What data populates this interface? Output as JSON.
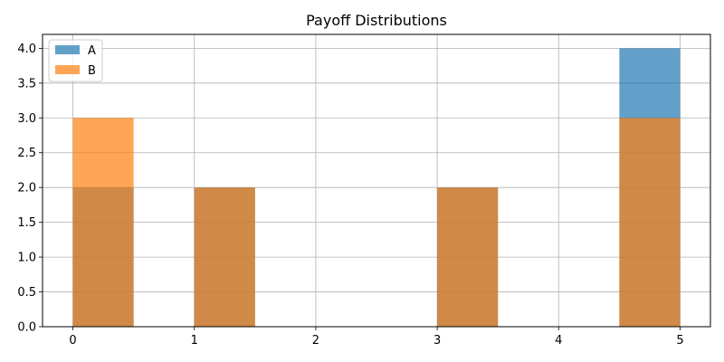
{
  "chart_data": {
    "type": "bar",
    "title": "Payoff Distributions",
    "xlabel": "",
    "ylabel": "",
    "xlim": [
      -0.25,
      5.25
    ],
    "ylim": [
      0,
      4.2
    ],
    "xticks": [
      "0",
      "1",
      "2",
      "3",
      "4",
      "5"
    ],
    "yticks": [
      "0.0",
      "0.5",
      "1.0",
      "1.5",
      "2.0",
      "2.5",
      "3.0",
      "3.5",
      "4.0"
    ],
    "grid": true,
    "legend_position": "top-left",
    "bin_width": 0.5,
    "series": [
      {
        "name": "A",
        "color": "#1f77b4",
        "bins": [
          {
            "x0": 0.0,
            "x1": 0.5,
            "count": 2
          },
          {
            "x0": 1.0,
            "x1": 1.5,
            "count": 2
          },
          {
            "x0": 3.0,
            "x1": 3.5,
            "count": 2
          },
          {
            "x0": 4.5,
            "x1": 5.0,
            "count": 4
          }
        ]
      },
      {
        "name": "B",
        "color": "#ff7f0e",
        "bins": [
          {
            "x0": 0.0,
            "x1": 0.5,
            "count": 3
          },
          {
            "x0": 1.0,
            "x1": 1.5,
            "count": 2
          },
          {
            "x0": 3.0,
            "x1": 3.5,
            "count": 2
          },
          {
            "x0": 4.5,
            "x1": 5.0,
            "count": 3
          }
        ]
      }
    ]
  }
}
